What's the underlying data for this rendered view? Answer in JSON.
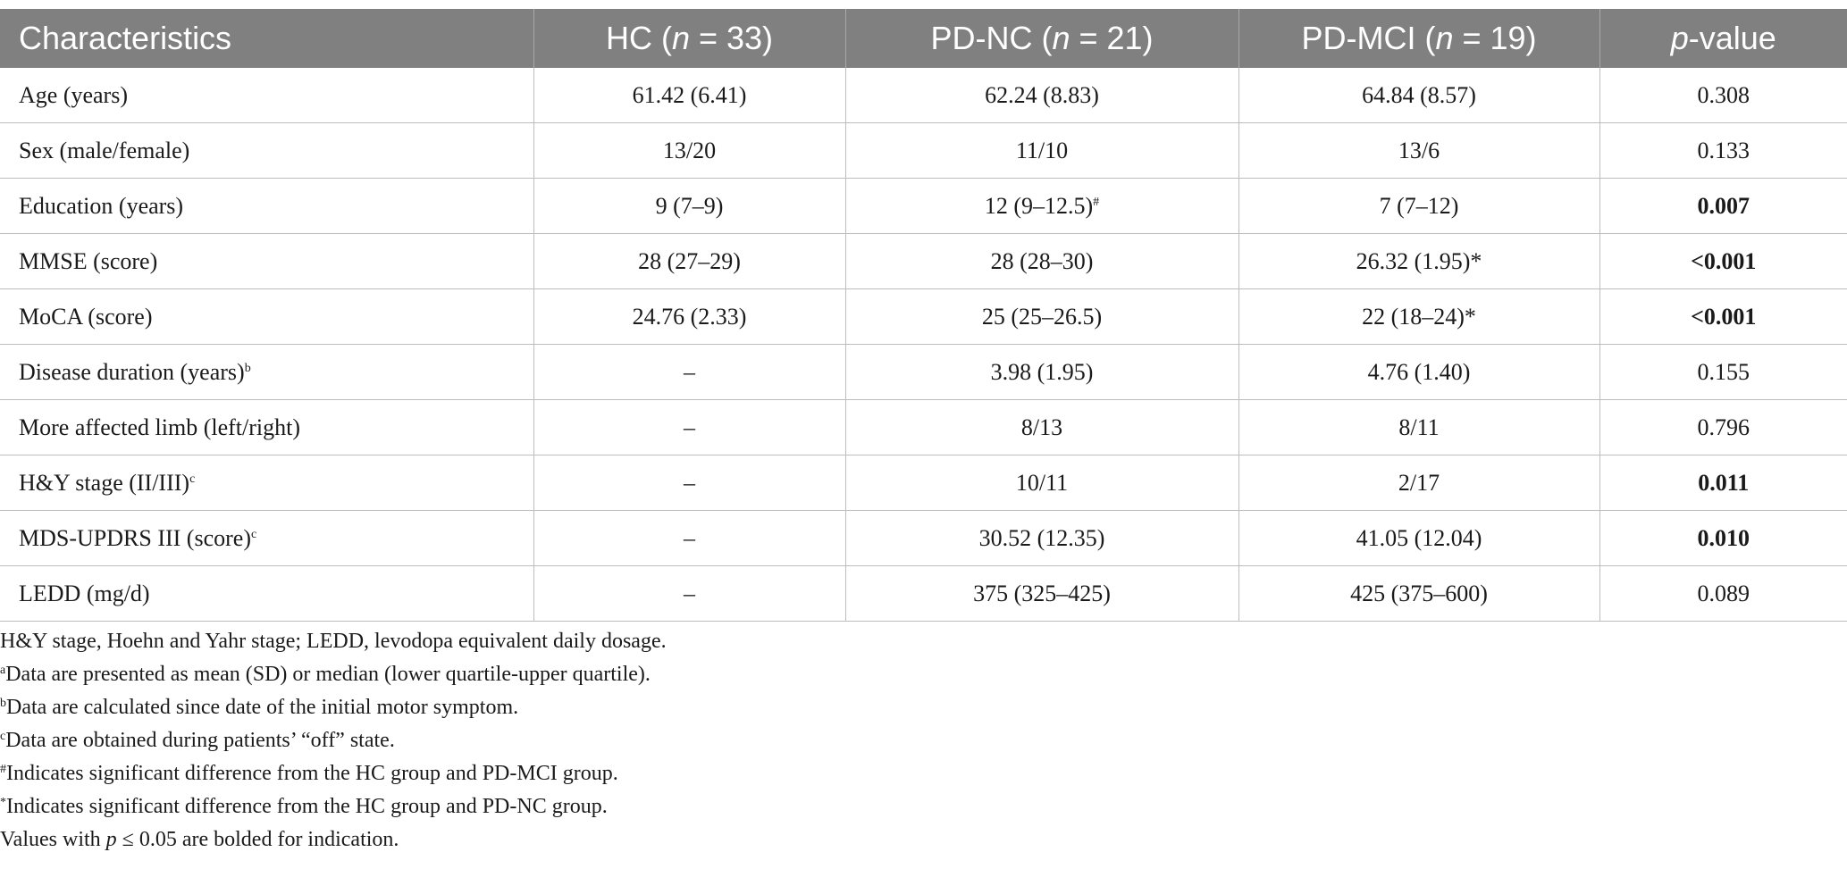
{
  "table": {
    "headers": [
      {
        "pre": "Characteristics",
        "ital": "",
        "post": ""
      },
      {
        "pre": "HC (",
        "ital": "n",
        "post": " = 33)"
      },
      {
        "pre": "PD-NC (",
        "ital": "n",
        "post": " = 21)"
      },
      {
        "pre": "PD-MCI (",
        "ital": "n",
        "post": " = 19)"
      },
      {
        "pre": "",
        "ital": "p",
        "post": "-value"
      }
    ],
    "rows": [
      {
        "label": "Age (years)",
        "label_sup": "",
        "hc": "61.42 (6.41)",
        "pdnc": "62.24 (8.83)",
        "pdnc_sup": "",
        "pdmci": "64.84 (8.57)",
        "p": "0.308",
        "p_bold": false
      },
      {
        "label": "Sex (male/female)",
        "label_sup": "",
        "hc": "13/20",
        "pdnc": "11/10",
        "pdnc_sup": "",
        "pdmci": "13/6",
        "p": "0.133",
        "p_bold": false
      },
      {
        "label": "Education (years)",
        "label_sup": "",
        "hc": "9 (7–9)",
        "pdnc": "12 (9–12.5)",
        "pdnc_sup": "#",
        "pdmci": "7 (7–12)",
        "p": "0.007",
        "p_bold": true
      },
      {
        "label": "MMSE (score)",
        "label_sup": "",
        "hc": "28 (27–29)",
        "pdnc": "28 (28–30)",
        "pdnc_sup": "",
        "pdmci": "26.32 (1.95)*",
        "p": "<0.001",
        "p_bold": true
      },
      {
        "label": "MoCA (score)",
        "label_sup": "",
        "hc": "24.76 (2.33)",
        "pdnc": "25 (25–26.5)",
        "pdnc_sup": "",
        "pdmci": "22 (18–24)*",
        "p": "<0.001",
        "p_bold": true
      },
      {
        "label": "Disease duration (years)",
        "label_sup": "b",
        "hc": "–",
        "pdnc": "3.98 (1.95)",
        "pdnc_sup": "",
        "pdmci": "4.76 (1.40)",
        "p": "0.155",
        "p_bold": false
      },
      {
        "label": "More affected limb (left/right)",
        "label_sup": "",
        "hc": "–",
        "pdnc": "8/13",
        "pdnc_sup": "",
        "pdmci": "8/11",
        "p": "0.796",
        "p_bold": false
      },
      {
        "label": "H&Y stage (II/III)",
        "label_sup": "c",
        "hc": "–",
        "pdnc": "10/11",
        "pdnc_sup": "",
        "pdmci": "2/17",
        "p": "0.011",
        "p_bold": true
      },
      {
        "label": "MDS-UPDRS III (score)",
        "label_sup": "c",
        "hc": "–",
        "pdnc": "30.52 (12.35)",
        "pdnc_sup": "",
        "pdmci": "41.05 (12.04)",
        "p": "0.010",
        "p_bold": true
      },
      {
        "label": "LEDD (mg/d)",
        "label_sup": "",
        "hc": "–",
        "pdnc": "375 (325–425)",
        "pdnc_sup": "",
        "pdmci": "425 (375–600)",
        "p": "0.089",
        "p_bold": false
      }
    ]
  },
  "footnotes": [
    {
      "sup": "",
      "pre": "H&Y stage, Hoehn and Yahr stage; LEDD, levodopa equivalent daily dosage.",
      "ital": "",
      "post": ""
    },
    {
      "sup": "a",
      "pre": "Data are presented as mean (SD) or median (lower quartile-upper quartile).",
      "ital": "",
      "post": ""
    },
    {
      "sup": "b",
      "pre": "Data are calculated since date of the initial motor symptom.",
      "ital": "",
      "post": ""
    },
    {
      "sup": "c",
      "pre": "Data are obtained during patients’ “off” state.",
      "ital": "",
      "post": ""
    },
    {
      "sup": "#",
      "pre": "Indicates significant difference from the HC group and PD-MCI group.",
      "ital": "",
      "post": ""
    },
    {
      "sup": "*",
      "pre": "Indicates significant difference from the HC group and PD-NC group.",
      "ital": "",
      "post": ""
    },
    {
      "sup": "",
      "pre": "Values with ",
      "ital": "p",
      "post": " ≤ 0.05 are bolded for indication."
    }
  ]
}
